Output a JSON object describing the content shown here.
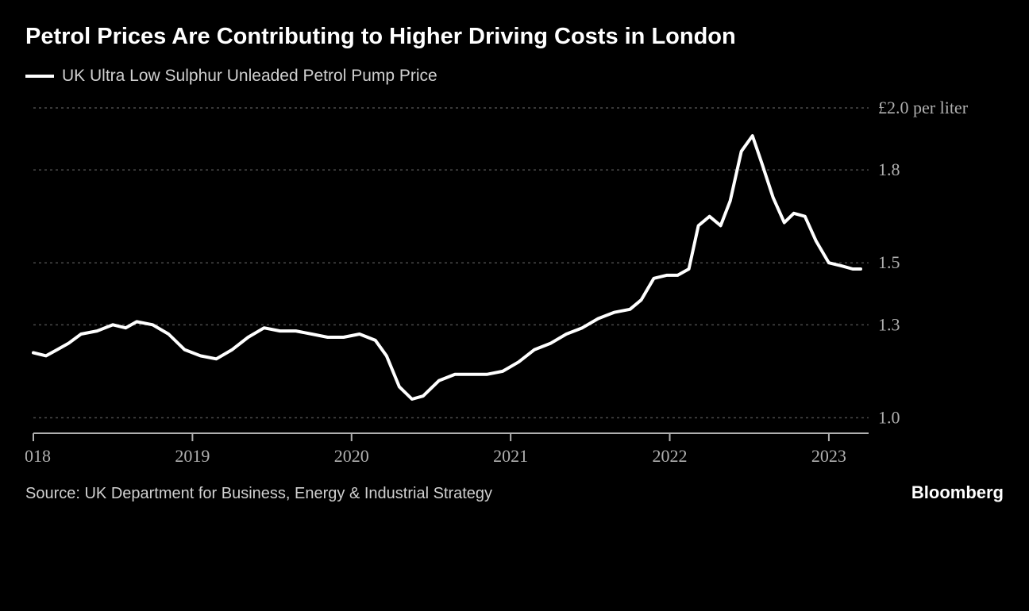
{
  "title": "Petrol Prices Are Contributing to Higher Driving Costs in London",
  "legend": {
    "label": "UK Ultra Low Sulphur Unleaded Petrol Pump Price"
  },
  "chart": {
    "type": "line",
    "background_color": "#000000",
    "line_color": "#ffffff",
    "line_width": 4,
    "grid_color": "#4a4a4a",
    "tick_color": "#b0b0b0",
    "axis_color": "#b0b0b0",
    "tick_fontsize": 22,
    "y_axis": {
      "unit_label": "£2.0 per liter",
      "ylim": [
        0.95,
        2.0
      ],
      "ticks": [
        {
          "value": 2.0,
          "label": "£2.0 per liter"
        },
        {
          "value": 1.8,
          "label": "1.8"
        },
        {
          "value": 1.5,
          "label": "1.5"
        },
        {
          "value": 1.3,
          "label": "1.3"
        },
        {
          "value": 1.0,
          "label": "1.0"
        }
      ]
    },
    "x_axis": {
      "xlim": [
        2018.0,
        2023.25
      ],
      "ticks": [
        {
          "value": 2018,
          "label": "2018"
        },
        {
          "value": 2019,
          "label": "2019"
        },
        {
          "value": 2020,
          "label": "2020"
        },
        {
          "value": 2021,
          "label": "2021"
        },
        {
          "value": 2022,
          "label": "2022"
        },
        {
          "value": 2023,
          "label": "2023"
        }
      ]
    },
    "series": [
      {
        "name": "petrol_price",
        "color": "#ffffff",
        "values": [
          [
            2018.0,
            1.21
          ],
          [
            2018.08,
            1.2
          ],
          [
            2018.15,
            1.22
          ],
          [
            2018.22,
            1.24
          ],
          [
            2018.3,
            1.27
          ],
          [
            2018.4,
            1.28
          ],
          [
            2018.5,
            1.3
          ],
          [
            2018.58,
            1.29
          ],
          [
            2018.65,
            1.31
          ],
          [
            2018.75,
            1.3
          ],
          [
            2018.85,
            1.27
          ],
          [
            2018.95,
            1.22
          ],
          [
            2019.05,
            1.2
          ],
          [
            2019.15,
            1.19
          ],
          [
            2019.25,
            1.22
          ],
          [
            2019.35,
            1.26
          ],
          [
            2019.45,
            1.29
          ],
          [
            2019.55,
            1.28
          ],
          [
            2019.65,
            1.28
          ],
          [
            2019.75,
            1.27
          ],
          [
            2019.85,
            1.26
          ],
          [
            2019.95,
            1.26
          ],
          [
            2020.05,
            1.27
          ],
          [
            2020.15,
            1.25
          ],
          [
            2020.22,
            1.2
          ],
          [
            2020.3,
            1.1
          ],
          [
            2020.38,
            1.06
          ],
          [
            2020.45,
            1.07
          ],
          [
            2020.55,
            1.12
          ],
          [
            2020.65,
            1.14
          ],
          [
            2020.75,
            1.14
          ],
          [
            2020.85,
            1.14
          ],
          [
            2020.95,
            1.15
          ],
          [
            2021.05,
            1.18
          ],
          [
            2021.15,
            1.22
          ],
          [
            2021.25,
            1.24
          ],
          [
            2021.35,
            1.27
          ],
          [
            2021.45,
            1.29
          ],
          [
            2021.55,
            1.32
          ],
          [
            2021.65,
            1.34
          ],
          [
            2021.75,
            1.35
          ],
          [
            2021.82,
            1.38
          ],
          [
            2021.9,
            1.45
          ],
          [
            2021.98,
            1.46
          ],
          [
            2022.05,
            1.46
          ],
          [
            2022.12,
            1.48
          ],
          [
            2022.18,
            1.62
          ],
          [
            2022.25,
            1.65
          ],
          [
            2022.32,
            1.62
          ],
          [
            2022.38,
            1.7
          ],
          [
            2022.45,
            1.86
          ],
          [
            2022.52,
            1.91
          ],
          [
            2022.58,
            1.82
          ],
          [
            2022.65,
            1.71
          ],
          [
            2022.72,
            1.63
          ],
          [
            2022.78,
            1.66
          ],
          [
            2022.85,
            1.65
          ],
          [
            2022.92,
            1.57
          ],
          [
            2023.0,
            1.5
          ],
          [
            2023.08,
            1.49
          ],
          [
            2023.15,
            1.48
          ],
          [
            2023.2,
            1.48
          ]
        ]
      }
    ]
  },
  "source": "Source: UK Department for Business, Energy & Industrial Strategy",
  "brand": "Bloomberg"
}
